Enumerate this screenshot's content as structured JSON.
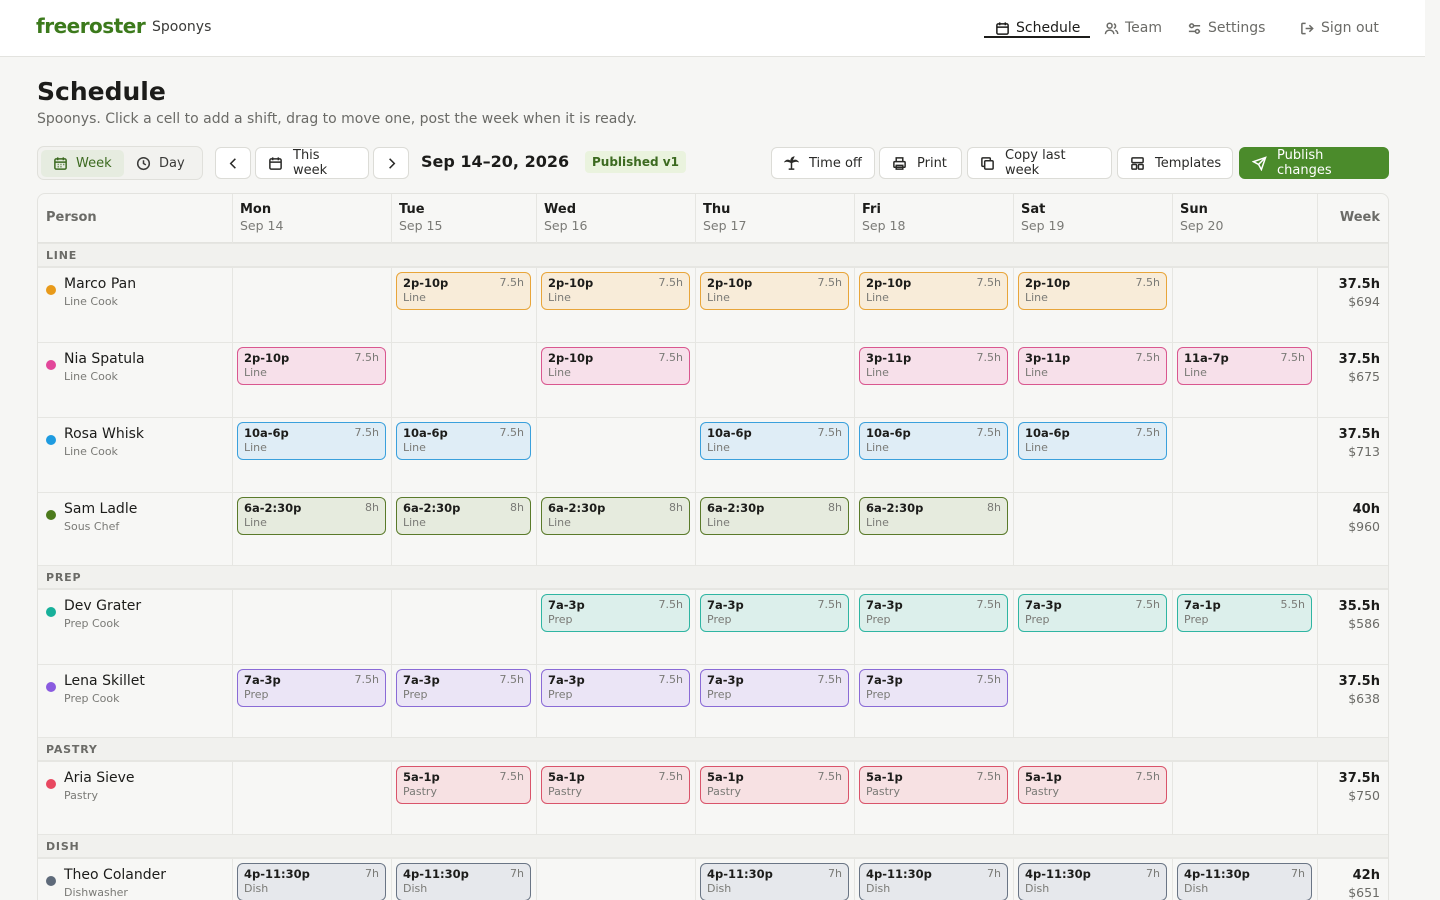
{
  "app": {
    "brand": "freeroster",
    "org": "Spoonys"
  },
  "nav": [
    {
      "label": "Schedule",
      "icon": "calendar-icon",
      "active": true
    },
    {
      "label": "Team",
      "icon": "users-icon",
      "active": false
    },
    {
      "label": "Settings",
      "icon": "sliders-icon",
      "active": false
    },
    {
      "label": "Sign out",
      "icon": "logout-icon",
      "active": false
    }
  ],
  "header": {
    "title": "Schedule",
    "subtitle": "Spoonys. Click a cell to add a shift, drag to move one, post the week when it is ready."
  },
  "toolbar": {
    "view_week": "Week",
    "view_day": "Day",
    "active_view": "Week",
    "this_week": "This week",
    "range": "Sep 14–20, 2026",
    "status": "Published v1",
    "time_off": "Time off",
    "print": "Print",
    "copy_last_week": "Copy last week",
    "templates": "Templates",
    "publish": "Publish changes"
  },
  "grid": {
    "person_header": "Person",
    "week_header": "Week",
    "days": [
      {
        "day": "Mon",
        "date": "Sep 14"
      },
      {
        "day": "Tue",
        "date": "Sep 15"
      },
      {
        "day": "Wed",
        "date": "Sep 16"
      },
      {
        "day": "Thu",
        "date": "Sep 17"
      },
      {
        "day": "Fri",
        "date": "Sep 18"
      },
      {
        "day": "Sat",
        "date": "Sep 19"
      },
      {
        "day": "Sun",
        "date": "Sep 20"
      }
    ],
    "groups": [
      {
        "name": "LINE",
        "people": [
          {
            "name": "Marco Pan",
            "role": "Line Cook",
            "color": "#e89a1a",
            "hours": "37.5h",
            "pay": "$694",
            "shifts": [
              null,
              {
                "time": "2p-10p",
                "hours": "7.5h",
                "station": "Line"
              },
              {
                "time": "2p-10p",
                "hours": "7.5h",
                "station": "Line"
              },
              {
                "time": "2p-10p",
                "hours": "7.5h",
                "station": "Line"
              },
              {
                "time": "2p-10p",
                "hours": "7.5h",
                "station": "Line"
              },
              {
                "time": "2p-10p",
                "hours": "7.5h",
                "station": "Line"
              },
              null
            ]
          },
          {
            "name": "Nia Spatula",
            "role": "Line Cook",
            "color": "#e2479a",
            "hours": "37.5h",
            "pay": "$675",
            "shifts": [
              {
                "time": "2p-10p",
                "hours": "7.5h",
                "station": "Line"
              },
              null,
              {
                "time": "2p-10p",
                "hours": "7.5h",
                "station": "Line"
              },
              null,
              {
                "time": "3p-11p",
                "hours": "7.5h",
                "station": "Line"
              },
              {
                "time": "3p-11p",
                "hours": "7.5h",
                "station": "Line"
              },
              {
                "time": "11a-7p",
                "hours": "7.5h",
                "station": "Line"
              }
            ]
          },
          {
            "name": "Rosa Whisk",
            "role": "Line Cook",
            "color": "#1e9be0",
            "hours": "37.5h",
            "pay": "$713",
            "shifts": [
              {
                "time": "10a-6p",
                "hours": "7.5h",
                "station": "Line"
              },
              {
                "time": "10a-6p",
                "hours": "7.5h",
                "station": "Line"
              },
              null,
              {
                "time": "10a-6p",
                "hours": "7.5h",
                "station": "Line"
              },
              {
                "time": "10a-6p",
                "hours": "7.5h",
                "station": "Line"
              },
              {
                "time": "10a-6p",
                "hours": "7.5h",
                "station": "Line"
              },
              null
            ]
          },
          {
            "name": "Sam Ladle",
            "role": "Sous Chef",
            "color": "#4c7a1c",
            "hours": "40h",
            "pay": "$960",
            "shifts": [
              {
                "time": "6a-2:30p",
                "hours": "8h",
                "station": "Line"
              },
              {
                "time": "6a-2:30p",
                "hours": "8h",
                "station": "Line"
              },
              {
                "time": "6a-2:30p",
                "hours": "8h",
                "station": "Line"
              },
              {
                "time": "6a-2:30p",
                "hours": "8h",
                "station": "Line"
              },
              {
                "time": "6a-2:30p",
                "hours": "8h",
                "station": "Line"
              },
              null,
              null
            ]
          }
        ]
      },
      {
        "name": "PREP",
        "people": [
          {
            "name": "Dev Grater",
            "role": "Prep Cook",
            "color": "#17b09a",
            "hours": "35.5h",
            "pay": "$586",
            "shifts": [
              null,
              null,
              {
                "time": "7a-3p",
                "hours": "7.5h",
                "station": "Prep"
              },
              {
                "time": "7a-3p",
                "hours": "7.5h",
                "station": "Prep"
              },
              {
                "time": "7a-3p",
                "hours": "7.5h",
                "station": "Prep"
              },
              {
                "time": "7a-3p",
                "hours": "7.5h",
                "station": "Prep"
              },
              {
                "time": "7a-1p",
                "hours": "5.5h",
                "station": "Prep"
              }
            ]
          },
          {
            "name": "Lena Skillet",
            "role": "Prep Cook",
            "color": "#8a5be0",
            "hours": "37.5h",
            "pay": "$638",
            "shifts": [
              {
                "time": "7a-3p",
                "hours": "7.5h",
                "station": "Prep"
              },
              {
                "time": "7a-3p",
                "hours": "7.5h",
                "station": "Prep"
              },
              {
                "time": "7a-3p",
                "hours": "7.5h",
                "station": "Prep"
              },
              {
                "time": "7a-3p",
                "hours": "7.5h",
                "station": "Prep"
              },
              {
                "time": "7a-3p",
                "hours": "7.5h",
                "station": "Prep"
              },
              null,
              null
            ]
          }
        ]
      },
      {
        "name": "PASTRY",
        "people": [
          {
            "name": "Aria Sieve",
            "role": "Pastry",
            "color": "#e84860",
            "hours": "37.5h",
            "pay": "$750",
            "shifts": [
              null,
              {
                "time": "5a-1p",
                "hours": "7.5h",
                "station": "Pastry"
              },
              {
                "time": "5a-1p",
                "hours": "7.5h",
                "station": "Pastry"
              },
              {
                "time": "5a-1p",
                "hours": "7.5h",
                "station": "Pastry"
              },
              {
                "time": "5a-1p",
                "hours": "7.5h",
                "station": "Pastry"
              },
              {
                "time": "5a-1p",
                "hours": "7.5h",
                "station": "Pastry"
              },
              null
            ]
          }
        ]
      },
      {
        "name": "DISH",
        "people": [
          {
            "name": "Theo Colander",
            "role": "Dishwasher",
            "color": "#5e6a7a",
            "hours": "42h",
            "pay": "$651",
            "shifts": [
              {
                "time": "4p-11:30p",
                "hours": "7h",
                "station": "Dish"
              },
              {
                "time": "4p-11:30p",
                "hours": "7h",
                "station": "Dish"
              },
              null,
              {
                "time": "4p-11:30p",
                "hours": "7h",
                "station": "Dish"
              },
              {
                "time": "4p-11:30p",
                "hours": "7h",
                "station": "Dish"
              },
              {
                "time": "4p-11:30p",
                "hours": "7h",
                "station": "Dish"
              },
              {
                "time": "4p-11:30p",
                "hours": "7h",
                "station": "Dish"
              }
            ]
          }
        ]
      }
    ]
  }
}
